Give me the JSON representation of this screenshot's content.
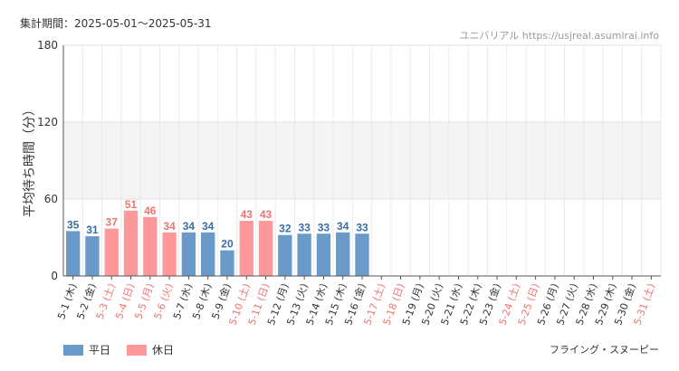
{
  "header": {
    "period": "集計期間：2025-05-01～2025-05-31",
    "source": "ユニバリアル  https://usjreal.asumirai.info"
  },
  "footer": {
    "attraction": "フライング・スヌーピー"
  },
  "legend": {
    "weekday_label": "平日",
    "holiday_label": "休日"
  },
  "colors": {
    "weekday": "#6a9ac8",
    "holiday": "#ff9898",
    "weekday_text": "#3a6ea5",
    "holiday_text": "#f07272"
  },
  "chart_data": {
    "type": "bar",
    "ylabel": "平均待ち時間（分）",
    "ylim": [
      0,
      180
    ],
    "yticks": [
      0,
      60,
      120,
      180
    ],
    "grid": true,
    "legend": "bottom-left",
    "categories": [
      "5-1 (木)",
      "5-2 (金)",
      "5-3 (土)",
      "5-4 (日)",
      "5-5 (月)",
      "5-6 (火)",
      "5-7 (水)",
      "5-8 (木)",
      "5-9 (金)",
      "5-10 (土)",
      "5-11 (日)",
      "5-12 (月)",
      "5-13 (火)",
      "5-14 (水)",
      "5-15 (木)",
      "5-16 (金)",
      "5-17 (土)",
      "5-18 (日)",
      "5-19 (月)",
      "5-20 (火)",
      "5-21 (水)",
      "5-22 (木)",
      "5-23 (金)",
      "5-24 (土)",
      "5-25 (日)",
      "5-26 (月)",
      "5-27 (火)",
      "5-28 (水)",
      "5-29 (木)",
      "5-30 (金)",
      "5-31 (土)"
    ],
    "day_type": [
      "weekday",
      "weekday",
      "holiday",
      "holiday",
      "holiday",
      "holiday",
      "weekday",
      "weekday",
      "weekday",
      "holiday",
      "holiday",
      "weekday",
      "weekday",
      "weekday",
      "weekday",
      "weekday",
      "holiday",
      "holiday",
      "weekday",
      "weekday",
      "weekday",
      "weekday",
      "weekday",
      "holiday",
      "holiday",
      "weekday",
      "weekday",
      "weekday",
      "weekday",
      "weekday",
      "holiday"
    ],
    "values": [
      35,
      31,
      37,
      51,
      46,
      34,
      34,
      34,
      20,
      43,
      43,
      32,
      33,
      33,
      34,
      33,
      null,
      null,
      null,
      null,
      null,
      null,
      null,
      null,
      null,
      null,
      null,
      null,
      null,
      null,
      null
    ]
  }
}
